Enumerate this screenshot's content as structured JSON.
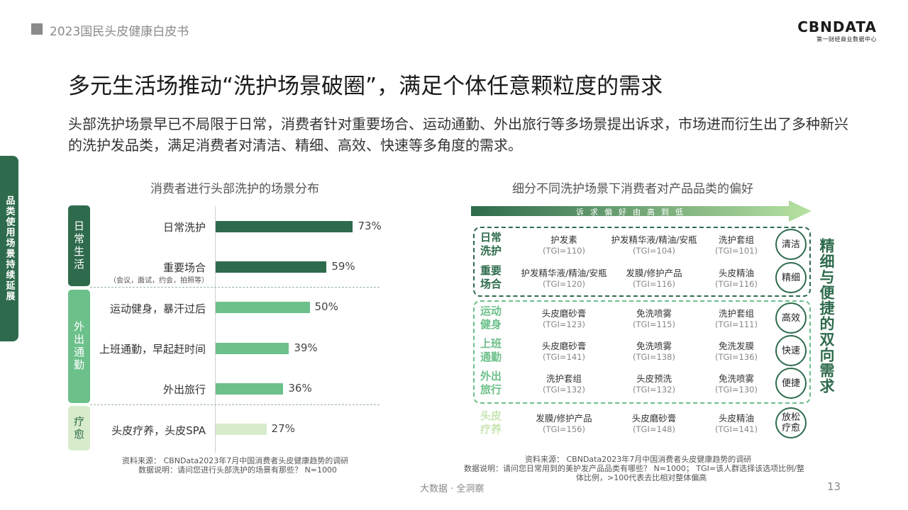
{
  "header": {
    "report_title": "2023国民头皮健康白皮书",
    "logo_main": "CBNDATA",
    "logo_sub": "第一财经商业数据中心"
  },
  "title": "多元生活场推动“洗护场景破圈”，满足个体任意颗粒度的需求",
  "intro": "头部洗护场景早已不局限于日常，消费者针对重要场合、运动通勤、外出旅行等多场景提出诉求，市场进而衍生出了多种新兴的洗护发品类，满足消费者对清洁、精细、高效、快速等多角度的需求。",
  "side_tab": "品类使用场景持续延展",
  "left_chart": {
    "title": "消费者进行头部洗护的场景分布",
    "groups": [
      {
        "label": "日常生活",
        "color": "#2e6b4c",
        "text_color": "#ffffff"
      },
      {
        "label": "外出通勤",
        "color": "#6cc08a",
        "text_color": "#ffffff"
      },
      {
        "label": "疗愈",
        "color": "#d8eccb",
        "text_color": "#2e6b4c"
      }
    ],
    "sub_note": "（会议，面试，约会，拍照等）",
    "source": "资料来源： CBNData2023年7月中国消费者头皮健康趋势的调研",
    "note": "数据说明：请问您进行头部洗护的场景有那些？ N=1000"
  },
  "chart_data": {
    "type": "bar",
    "orientation": "horizontal",
    "title": "消费者进行头部洗护的场景分布",
    "categories": [
      "日常洗护",
      "重要场合",
      "运动健身，暴汗过后",
      "上班通勤，早起赶时间",
      "外出旅行",
      "头皮疗养，头皮SPA"
    ],
    "values": [
      73,
      59,
      50,
      39,
      36,
      27
    ],
    "value_labels": [
      "73%",
      "59%",
      "50%",
      "39%",
      "36%",
      "27%"
    ],
    "bar_colors": [
      "#2e6b4c",
      "#2e6b4c",
      "#6cc08a",
      "#6cc08a",
      "#6cc08a",
      "#d8eccb"
    ],
    "xlim": [
      0,
      100
    ],
    "grid": false
  },
  "right_chart": {
    "title": "细分不同洗护场景下消费者对产品品类的偏好",
    "arrow_label": "诉求偏好由高到低",
    "side_text": "精细与便捷的双向需求",
    "rows": [
      {
        "scene": [
          "日常",
          "洗护"
        ],
        "scene_color": "#2e6b4c",
        "items": [
          [
            "护发素",
            "(TGI=110)"
          ],
          [
            "护发精华液/精油/安瓶",
            "(TGI=104)"
          ],
          [
            "洗护套组",
            "(TGI=101)"
          ]
        ],
        "need": "清洁"
      },
      {
        "scene": [
          "重要",
          "场合"
        ],
        "scene_color": "#2e6b4c",
        "items": [
          [
            "护发精华液/精油/安瓶",
            "(TGI=120)"
          ],
          [
            "发膜/修护产品",
            "(TGI=116)"
          ],
          [
            "头皮精油",
            "(TGI=116)"
          ]
        ],
        "need": "精细"
      },
      {
        "scene": [
          "运动",
          "健身"
        ],
        "scene_color": "#6cc08a",
        "items": [
          [
            "头皮磨砂膏",
            "(TGI=123)"
          ],
          [
            "免洗喷雾",
            "(TGI=115)"
          ],
          [
            "洗护套组",
            "(TGI=111)"
          ]
        ],
        "need": "高效"
      },
      {
        "scene": [
          "上班",
          "通勤"
        ],
        "scene_color": "#6cc08a",
        "items": [
          [
            "头皮磨砂膏",
            "(TGI=141)"
          ],
          [
            "免洗喷雾",
            "(TGI=138)"
          ],
          [
            "免洗发膜",
            "(TGI=136)"
          ]
        ],
        "need": "快速"
      },
      {
        "scene": [
          "外出",
          "旅行"
        ],
        "scene_color": "#6cc08a",
        "items": [
          [
            "洗护套组",
            "(TGI=132)"
          ],
          [
            "头皮预洗",
            "(TGI=132)"
          ],
          [
            "免洗喷雾",
            "(TGI=130)"
          ]
        ],
        "need": "便捷"
      },
      {
        "scene": [
          "头皮",
          "疗养"
        ],
        "scene_color": "#c8e6b4",
        "items": [
          [
            "发膜/修护产品",
            "(TGI=156)"
          ],
          [
            "头皮磨砂膏",
            "(TGI=148)"
          ],
          [
            "头皮精油",
            "(TGI=141)"
          ]
        ],
        "need": [
          "放松",
          "疗愈"
        ]
      }
    ],
    "source": "资料来源： CBNData2023年7月中国消费者头皮健康趋势的调研",
    "note_line1": "数据说明：请问您日常用到的美护发产品品类有哪些？ N=1000； TGI=该人群选择该选项比例/整",
    "note_line2": "体比例，>100代表去比相对整体偏高"
  },
  "footer": {
    "center": "大数据 · 全洞察",
    "page": "13"
  }
}
